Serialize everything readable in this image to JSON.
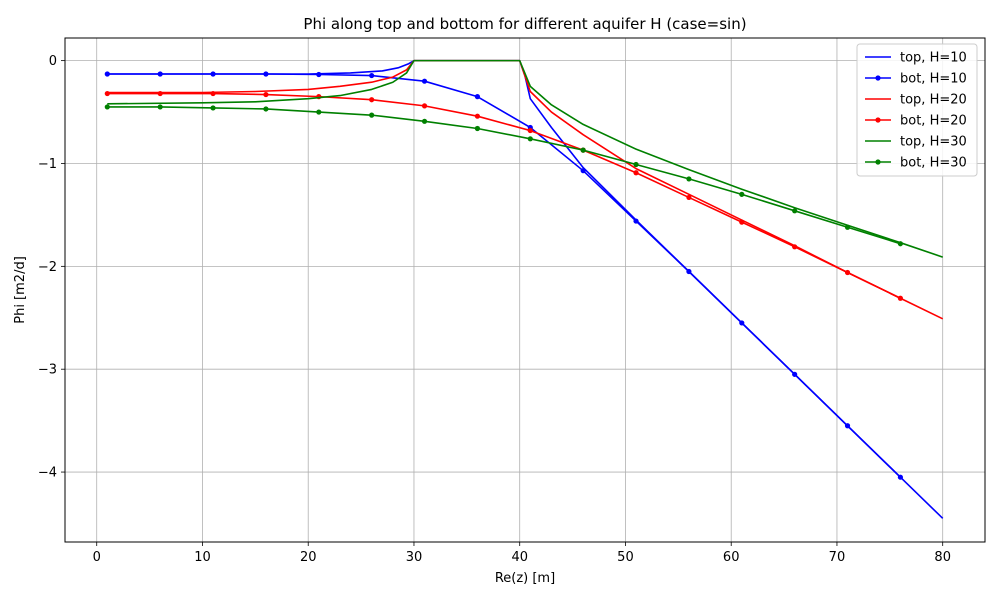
{
  "chart_data": {
    "type": "line",
    "title": "Phi along top and bottom for different aquifer H (case=sin)",
    "xlabel": "Re(z) [m]",
    "ylabel": "Phi [m2/d]",
    "xlim": [
      -3,
      84
    ],
    "ylim": [
      -4.68,
      0.22
    ],
    "xticks": [
      0,
      10,
      20,
      30,
      40,
      50,
      60,
      70,
      80
    ],
    "yticks": [
      0,
      -1,
      -2,
      -3,
      -4
    ],
    "ytick_labels": [
      "0",
      "−1",
      "−2",
      "−3",
      "−4"
    ],
    "grid": true,
    "legend_position": "top-right",
    "series": [
      {
        "name": "top, H=10",
        "color": "#0000ff",
        "marker": false,
        "x": [
          1,
          10,
          20,
          24,
          27,
          28.5,
          29.5,
          30,
          40,
          40.5,
          41,
          43,
          46,
          51,
          56,
          61,
          66,
          71,
          76,
          80
        ],
        "y": [
          -0.13,
          -0.13,
          -0.13,
          -0.12,
          -0.1,
          -0.07,
          -0.03,
          0,
          0,
          -0.15,
          -0.37,
          -0.65,
          -1.04,
          -1.55,
          -2.05,
          -2.55,
          -3.05,
          -3.55,
          -4.05,
          -4.45
        ]
      },
      {
        "name": "bot, H=10",
        "color": "#0000ff",
        "marker": true,
        "x": [
          1,
          6,
          11,
          16,
          21,
          26,
          31,
          36,
          41,
          46,
          51,
          56,
          61,
          66,
          71,
          76
        ],
        "y": [
          -0.13,
          -0.13,
          -0.13,
          -0.13,
          -0.135,
          -0.145,
          -0.2,
          -0.35,
          -0.65,
          -1.07,
          -1.56,
          -2.05,
          -2.55,
          -3.05,
          -3.55,
          -4.05
        ]
      },
      {
        "name": "top, H=20",
        "color": "#ff0000",
        "marker": false,
        "x": [
          1,
          10,
          15,
          20,
          23,
          26,
          28,
          29.3,
          30,
          40,
          41,
          43,
          46,
          51,
          56,
          61,
          66,
          71,
          76,
          80
        ],
        "y": [
          -0.31,
          -0.31,
          -0.3,
          -0.28,
          -0.25,
          -0.21,
          -0.16,
          -0.09,
          0,
          0,
          -0.3,
          -0.5,
          -0.72,
          -1.05,
          -1.3,
          -1.55,
          -1.8,
          -2.06,
          -2.31,
          -2.51
        ]
      },
      {
        "name": "bot, H=20",
        "color": "#ff0000",
        "marker": true,
        "x": [
          1,
          6,
          11,
          16,
          21,
          26,
          31,
          36,
          41,
          46,
          51,
          56,
          61,
          66,
          71,
          76
        ],
        "y": [
          -0.32,
          -0.32,
          -0.32,
          -0.33,
          -0.35,
          -0.38,
          -0.44,
          -0.54,
          -0.68,
          -0.87,
          -1.09,
          -1.33,
          -1.57,
          -1.81,
          -2.06,
          -2.31
        ]
      },
      {
        "name": "top, H=30",
        "color": "#008000",
        "marker": false,
        "x": [
          1,
          10,
          15,
          20,
          23,
          26,
          28,
          29.3,
          30,
          40,
          41,
          43,
          46,
          51,
          56,
          61,
          66,
          71,
          76,
          80
        ],
        "y": [
          -0.42,
          -0.41,
          -0.4,
          -0.37,
          -0.34,
          -0.28,
          -0.21,
          -0.12,
          0,
          0,
          -0.25,
          -0.43,
          -0.62,
          -0.86,
          -1.06,
          -1.25,
          -1.43,
          -1.6,
          -1.77,
          -1.91
        ]
      },
      {
        "name": "bot, H=30",
        "color": "#008000",
        "marker": true,
        "x": [
          1,
          6,
          11,
          16,
          21,
          26,
          31,
          36,
          41,
          46,
          51,
          56,
          61,
          66,
          71,
          76
        ],
        "y": [
          -0.45,
          -0.45,
          -0.46,
          -0.47,
          -0.5,
          -0.53,
          -0.59,
          -0.66,
          -0.76,
          -0.87,
          -1.01,
          -1.15,
          -1.3,
          -1.46,
          -1.62,
          -1.78
        ]
      }
    ]
  }
}
